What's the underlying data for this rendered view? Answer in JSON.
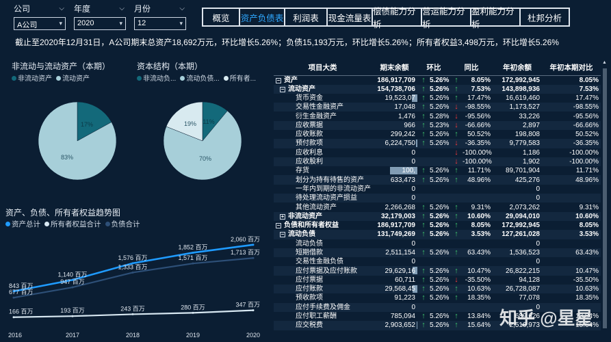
{
  "filters": [
    {
      "label": "公司",
      "value": "A公司"
    },
    {
      "label": "年度",
      "value": "2020"
    },
    {
      "label": "月份",
      "value": "12"
    }
  ],
  "tabs": [
    {
      "label": "概览",
      "active": false
    },
    {
      "label": "资产负债表",
      "active": true
    },
    {
      "label": "利润表",
      "active": false
    },
    {
      "label": "现金流量表",
      "active": false
    },
    {
      "label": "偿债能力分析",
      "active": false
    },
    {
      "label": "营运能力分析",
      "active": false
    },
    {
      "label": "盈利能力分析",
      "active": false
    },
    {
      "label": "杜邦分析",
      "active": false
    }
  ],
  "summary": "截止至2020年12月31日，A公司期末总资产18,692万元，环比增长5.26%；负债15,193万元，环比增长5.26%；所有者权益3,498万元，环比增长5.26%",
  "pie1": {
    "title": "非流动与流动资产（本期）",
    "legend": [
      "非流动资产",
      "流动资产"
    ],
    "colors": [
      "#13697a",
      "#a7cfd9"
    ],
    "slices": [
      17,
      83
    ],
    "labels": [
      "17%",
      "83%"
    ]
  },
  "pie2": {
    "title": "资本结构（本期）",
    "legend": [
      "非流动负...",
      "流动负债...",
      "所有者..."
    ],
    "colors": [
      "#13697a",
      "#a7cfd9",
      "#d8eaf0"
    ],
    "slices": [
      11,
      70,
      19
    ],
    "labels": [
      "11%",
      "70%",
      "19%"
    ]
  },
  "chart_data": {
    "type": "line",
    "title": "资产、负债、所有者权益趋势图",
    "x": [
      "2016",
      "2017",
      "2018",
      "2019",
      "2020"
    ],
    "series": [
      {
        "name": "资产总计",
        "color": "#1f9bff",
        "values": [
          843,
          1140,
          1576,
          1852,
          2060
        ],
        "labels": [
          "843 百万",
          "1,140 百万",
          "1,576 百万",
          "1,852 百万",
          "2,060 百万"
        ]
      },
      {
        "name": "所有者权益合计",
        "color": "#d8e8f2",
        "values": [
          166,
          193,
          243,
          280,
          347
        ],
        "labels": [
          "166 百万",
          "193 百万",
          "243 百万",
          "280 百万",
          "347 百万"
        ]
      },
      {
        "name": "负债合计",
        "color": "#2d4f77",
        "values": [
          677,
          947,
          1333,
          1571,
          1713
        ],
        "labels": [
          "677 百万",
          "947 百万",
          "1,333 百万",
          "1,571 百万",
          "1,713 百万"
        ]
      }
    ],
    "ylim": [
      0,
      2200
    ]
  },
  "table": {
    "headers": [
      "项目大类",
      "期末余额",
      "环比",
      "同比",
      "年初余额",
      "年初本期对比"
    ],
    "rows": [
      {
        "name": "资产",
        "level": 0,
        "expander": "⊟",
        "bold": true,
        "end": "186,917,709",
        "mom_dir": "up",
        "mom": "5.26%",
        "yoy_dir": "up",
        "yoy": "8.05%",
        "begin": "172,992,945",
        "cmp": "8.05%"
      },
      {
        "name": "流动资产",
        "level": 1,
        "expander": "⊟",
        "bold": true,
        "end": "154,738,706",
        "mom_dir": "up",
        "mom": "5.26%",
        "yoy_dir": "up",
        "yoy": "7.53%",
        "begin": "143,898,936",
        "cmp": "7.53%"
      },
      {
        "name": "货币资金",
        "level": 2,
        "end": "19,523,07",
        "bar": 0.12,
        "mom_dir": "up",
        "mom": "5.26%",
        "yoy_dir": "up",
        "yoy": "17.47%",
        "begin": "16,619,460",
        "cmp": "17.47%"
      },
      {
        "name": "交易性金融资产",
        "level": 2,
        "end": "17,048",
        "mom_dir": "up",
        "mom": "5.26%",
        "yoy_dir": "down",
        "yoy": "-98.55%",
        "begin": "1,173,527",
        "cmp": "-98.55%"
      },
      {
        "name": "衍生金融资产",
        "level": 2,
        "end": "1,476",
        "mom_dir": "up",
        "mom": "5.28%",
        "yoy_dir": "down",
        "yoy": "-95.56%",
        "begin": "33,226",
        "cmp": "-95.56%"
      },
      {
        "name": "应收票据",
        "level": 2,
        "end": "966",
        "mom_dir": "up",
        "mom": "5.23%",
        "yoy_dir": "down",
        "yoy": "-66.66%",
        "begin": "2,897",
        "cmp": "-66.66%"
      },
      {
        "name": "应收账款",
        "level": 2,
        "end": "299,242",
        "mom_dir": "up",
        "mom": "5.26%",
        "yoy_dir": "up",
        "yoy": "50.52%",
        "begin": "198,808",
        "cmp": "50.52%"
      },
      {
        "name": "预付款项",
        "level": 2,
        "end": "6,224,750",
        "bar": 0.03,
        "mom_dir": "up",
        "mom": "5.26%",
        "yoy_dir": "down",
        "yoy": "-36.35%",
        "begin": "9,779,583",
        "cmp": "-36.35%"
      },
      {
        "name": "应收利息",
        "level": 2,
        "end": "0",
        "mom_dir": "",
        "mom": "",
        "yoy_dir": "down",
        "yoy": "-100.00%",
        "begin": "1,186",
        "cmp": "-100.00%"
      },
      {
        "name": "应收股利",
        "level": 2,
        "end": "0",
        "mom_dir": "",
        "mom": "",
        "yoy_dir": "down",
        "yoy": "-100.00%",
        "begin": "1,902",
        "cmp": "-100.00%"
      },
      {
        "name": "存货",
        "level": 2,
        "end": "100,",
        "bar": 0.6,
        "mom_dir": "up",
        "mom": "5.26%",
        "yoy_dir": "up",
        "yoy": "11.71%",
        "begin": "89,701,904",
        "cmp": "11.71%"
      },
      {
        "name": "划分为持有待售的资产",
        "level": 2,
        "end": "633,473",
        "mom_dir": "up",
        "mom": "5.26%",
        "yoy_dir": "up",
        "yoy": "48.96%",
        "begin": "425,276",
        "cmp": "48.96%"
      },
      {
        "name": "一年内到期的非流动资产",
        "level": 2,
        "end": "0",
        "mom_dir": "",
        "mom": "",
        "yoy_dir": "",
        "yoy": "",
        "begin": "0",
        "cmp": ""
      },
      {
        "name": "待处理流动资产损益",
        "level": 2,
        "end": "0",
        "mom_dir": "",
        "mom": "",
        "yoy_dir": "",
        "yoy": "",
        "begin": "0",
        "cmp": ""
      },
      {
        "name": "其他流动资产",
        "level": 2,
        "end": "2,266,268",
        "mom_dir": "up",
        "mom": "5.26%",
        "yoy_dir": "up",
        "yoy": "9.31%",
        "begin": "2,073,262",
        "cmp": "9.31%"
      },
      {
        "name": "非流动资产",
        "level": 1,
        "expander": "⊞",
        "bold": true,
        "end": "32,179,003",
        "mom_dir": "up",
        "mom": "5.26%",
        "yoy_dir": "up",
        "yoy": "10.60%",
        "begin": "29,094,010",
        "cmp": "10.60%"
      },
      {
        "name": "负债和所有者权益",
        "level": 0,
        "expander": "⊟",
        "bold": true,
        "end": "186,917,709",
        "mom_dir": "up",
        "mom": "5.26%",
        "yoy_dir": "up",
        "yoy": "8.05%",
        "begin": "172,992,945",
        "cmp": "8.05%"
      },
      {
        "name": "流动负债",
        "level": 1,
        "expander": "⊟",
        "bold": true,
        "end": "131,749,269",
        "mom_dir": "up",
        "mom": "5.26%",
        "yoy_dir": "up",
        "yoy": "3.53%",
        "begin": "127,261,028",
        "cmp": "3.53%"
      },
      {
        "name": "流动负债",
        "level": 2,
        "end": "0",
        "mom_dir": "",
        "mom": "",
        "yoy_dir": "",
        "yoy": "",
        "begin": "0",
        "cmp": ""
      },
      {
        "name": "短期借款",
        "level": 2,
        "end": "2,511,154",
        "mom_dir": "up",
        "mom": "5.26%",
        "yoy_dir": "up",
        "yoy": "63.43%",
        "begin": "1,536,523",
        "cmp": "63.43%"
      },
      {
        "name": "交易性金融负债",
        "level": 2,
        "end": "0",
        "mom_dir": "",
        "mom": "",
        "yoy_dir": "",
        "yoy": "",
        "begin": "0",
        "cmp": ""
      },
      {
        "name": "应付票据及应付账款",
        "level": 2,
        "end": "29,629,16",
        "bar": 0.1,
        "mom_dir": "up",
        "mom": "5.26%",
        "yoy_dir": "up",
        "yoy": "10.47%",
        "begin": "26,822,215",
        "cmp": "10.47%"
      },
      {
        "name": "应付票据",
        "level": 2,
        "end": "60,711",
        "mom_dir": "up",
        "mom": "5.26%",
        "yoy_dir": "down",
        "yoy": "-35.50%",
        "begin": "94,128",
        "cmp": "-35.50%"
      },
      {
        "name": "应付账款",
        "level": 2,
        "end": "29,568,45",
        "bar": 0.1,
        "mom_dir": "up",
        "mom": "5.26%",
        "yoy_dir": "up",
        "yoy": "10.63%",
        "begin": "26,728,087",
        "cmp": "10.63%"
      },
      {
        "name": "预收款项",
        "level": 2,
        "end": "91,223",
        "mom_dir": "up",
        "mom": "5.26%",
        "yoy_dir": "up",
        "yoy": "18.35%",
        "begin": "77,078",
        "cmp": "18.35%"
      },
      {
        "name": "应付手续费及佣金",
        "level": 2,
        "end": "0",
        "mom_dir": "",
        "mom": "",
        "yoy_dir": "",
        "yoy": "",
        "begin": "0",
        "cmp": ""
      },
      {
        "name": "应付职工薪酬",
        "level": 2,
        "end": "785,094",
        "mom_dir": "up",
        "mom": "5.26%",
        "yoy_dir": "up",
        "yoy": "13.84%",
        "begin": "689,626",
        "cmp": "13.84%"
      },
      {
        "name": "应交税费",
        "level": 2,
        "end": "2,903,652",
        "bar": 0.02,
        "mom_dir": "up",
        "mom": "5.26%",
        "yoy_dir": "up",
        "yoy": "15.64%",
        "begin": "2,510,973",
        "cmp": "15.64%"
      }
    ]
  },
  "watermark": "知乎 @星星"
}
